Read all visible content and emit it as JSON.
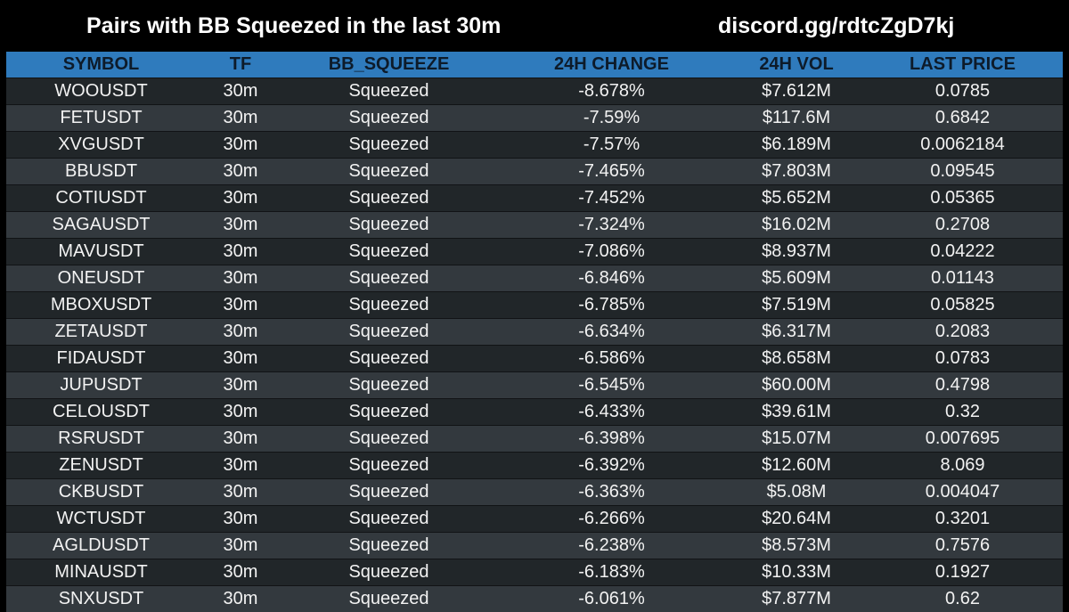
{
  "header": {
    "title": "Pairs with BB Squeezed in the last 30m",
    "discord": "discord.gg/rdtcZgD7kj"
  },
  "colors": {
    "background": "#000000",
    "header_row": "#2f7bbd",
    "row_dark": "#212629",
    "row_light": "#33393e",
    "header_text": "#0d1b2a",
    "cell_text": "#f2f2f2"
  },
  "table": {
    "columns": [
      "SYMBOL",
      "TF",
      "BB_SQUEEZE",
      "24H CHANGE",
      "24H VOL",
      "LAST PRICE"
    ],
    "rows": [
      [
        "WOOUSDT",
        "30m",
        "Squeezed",
        "-8.678%",
        "$7.612M",
        "0.0785"
      ],
      [
        "FETUSDT",
        "30m",
        "Squeezed",
        "-7.59%",
        "$117.6M",
        "0.6842"
      ],
      [
        "XVGUSDT",
        "30m",
        "Squeezed",
        "-7.57%",
        "$6.189M",
        "0.0062184"
      ],
      [
        "BBUSDT",
        "30m",
        "Squeezed",
        "-7.465%",
        "$7.803M",
        "0.09545"
      ],
      [
        "COTIUSDT",
        "30m",
        "Squeezed",
        "-7.452%",
        "$5.652M",
        "0.05365"
      ],
      [
        "SAGAUSDT",
        "30m",
        "Squeezed",
        "-7.324%",
        "$16.02M",
        "0.2708"
      ],
      [
        "MAVUSDT",
        "30m",
        "Squeezed",
        "-7.086%",
        "$8.937M",
        "0.04222"
      ],
      [
        "ONEUSDT",
        "30m",
        "Squeezed",
        "-6.846%",
        "$5.609M",
        "0.01143"
      ],
      [
        "MBOXUSDT",
        "30m",
        "Squeezed",
        "-6.785%",
        "$7.519M",
        "0.05825"
      ],
      [
        "ZETAUSDT",
        "30m",
        "Squeezed",
        "-6.634%",
        "$6.317M",
        "0.2083"
      ],
      [
        "FIDAUSDT",
        "30m",
        "Squeezed",
        "-6.586%",
        "$8.658M",
        "0.0783"
      ],
      [
        "JUPUSDT",
        "30m",
        "Squeezed",
        "-6.545%",
        "$60.00M",
        "0.4798"
      ],
      [
        "CELOUSDT",
        "30m",
        "Squeezed",
        "-6.433%",
        "$39.61M",
        "0.32"
      ],
      [
        "RSRUSDT",
        "30m",
        "Squeezed",
        "-6.398%",
        "$15.07M",
        "0.007695"
      ],
      [
        "ZENUSDT",
        "30m",
        "Squeezed",
        "-6.392%",
        "$12.60M",
        "8.069"
      ],
      [
        "CKBUSDT",
        "30m",
        "Squeezed",
        "-6.363%",
        "$5.08M",
        "0.004047"
      ],
      [
        "WCTUSDT",
        "30m",
        "Squeezed",
        "-6.266%",
        "$20.64M",
        "0.3201"
      ],
      [
        "AGLDUSDT",
        "30m",
        "Squeezed",
        "-6.238%",
        "$8.573M",
        "0.7576"
      ],
      [
        "MINAUSDT",
        "30m",
        "Squeezed",
        "-6.183%",
        "$10.33M",
        "0.1927"
      ],
      [
        "SNXUSDT",
        "30m",
        "Squeezed",
        "-6.061%",
        "$7.877M",
        "0.62"
      ]
    ]
  }
}
